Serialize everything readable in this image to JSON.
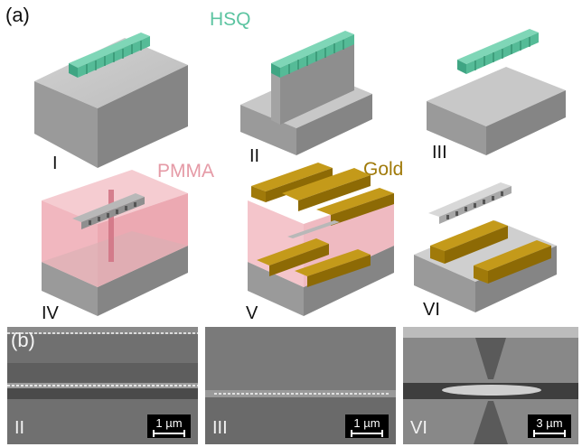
{
  "panels": {
    "a_label": "(a)",
    "b_label": "(b)"
  },
  "materials": {
    "hsq": "HSQ",
    "pmma": "PMMA",
    "gold": "Gold"
  },
  "colors": {
    "hsq": "#5cc4a1",
    "pmma": "#e99aa3",
    "gold": "#b58a0c",
    "substrate": "#bdbdbd"
  },
  "steps": [
    "I",
    "II",
    "III",
    "IV",
    "V",
    "VI"
  ],
  "sem_images": [
    {
      "step": "II",
      "scale": "1 µm"
    },
    {
      "step": "III",
      "scale": "1 µm"
    },
    {
      "step": "VI",
      "scale": "3 µm"
    }
  ]
}
